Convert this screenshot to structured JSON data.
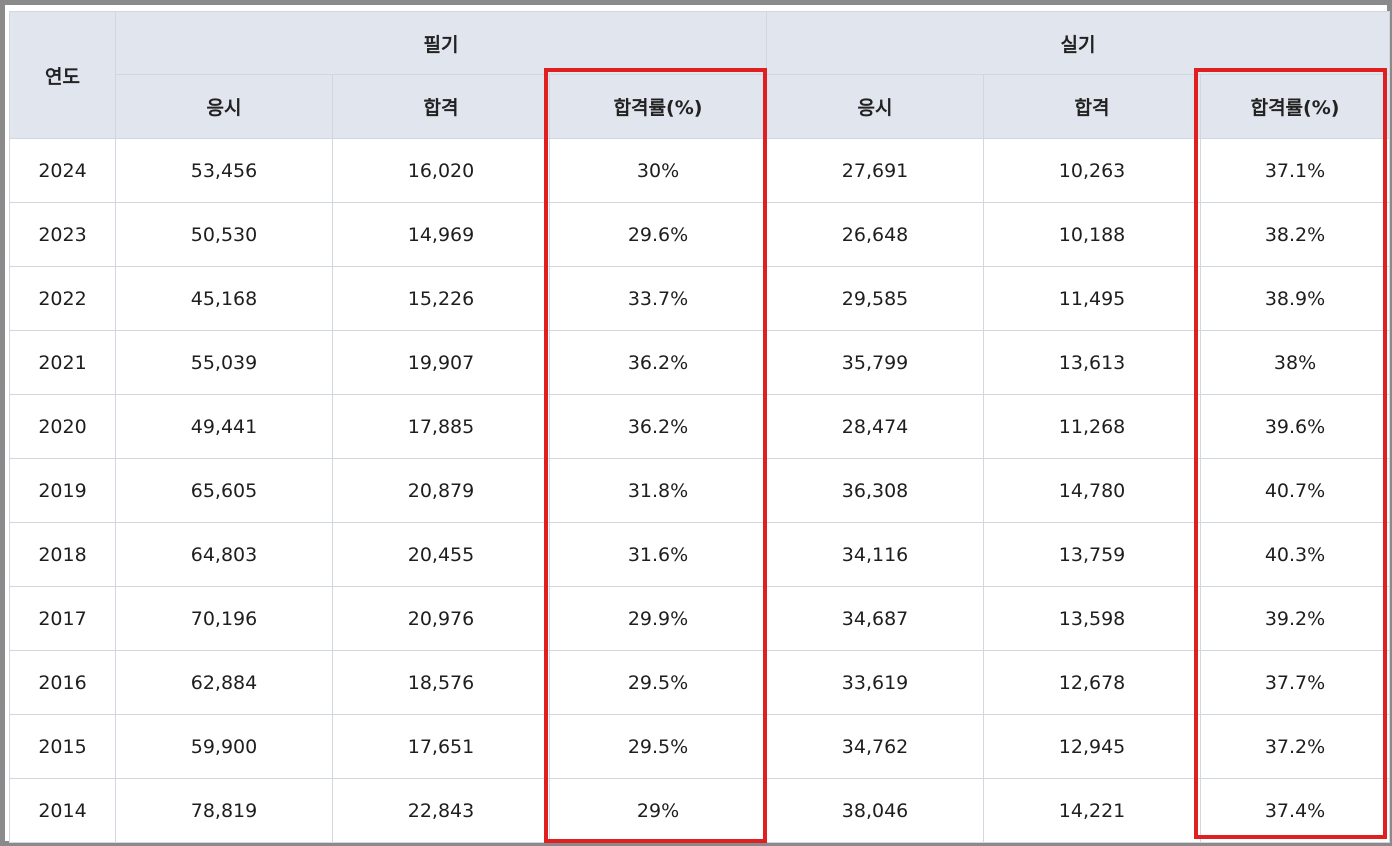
{
  "columns": {
    "year": "연도",
    "written_group": "필기",
    "practical_group": "실기",
    "applicants": "응시",
    "passed": "합격",
    "pass_rate": "합격률(%)"
  },
  "rows": [
    {
      "year": "2024",
      "w_app": "53,456",
      "w_pass": "16,020",
      "w_rate": "30%",
      "p_app": "27,691",
      "p_pass": "10,263",
      "p_rate": "37.1%"
    },
    {
      "year": "2023",
      "w_app": "50,530",
      "w_pass": "14,969",
      "w_rate": "29.6%",
      "p_app": "26,648",
      "p_pass": "10,188",
      "p_rate": "38.2%"
    },
    {
      "year": "2022",
      "w_app": "45,168",
      "w_pass": "15,226",
      "w_rate": "33.7%",
      "p_app": "29,585",
      "p_pass": "11,495",
      "p_rate": "38.9%"
    },
    {
      "year": "2021",
      "w_app": "55,039",
      "w_pass": "19,907",
      "w_rate": "36.2%",
      "p_app": "35,799",
      "p_pass": "13,613",
      "p_rate": "38%"
    },
    {
      "year": "2020",
      "w_app": "49,441",
      "w_pass": "17,885",
      "w_rate": "36.2%",
      "p_app": "28,474",
      "p_pass": "11,268",
      "p_rate": "39.6%"
    },
    {
      "year": "2019",
      "w_app": "65,605",
      "w_pass": "20,879",
      "w_rate": "31.8%",
      "p_app": "36,308",
      "p_pass": "14,780",
      "p_rate": "40.7%"
    },
    {
      "year": "2018",
      "w_app": "64,803",
      "w_pass": "20,455",
      "w_rate": "31.6%",
      "p_app": "34,116",
      "p_pass": "13,759",
      "p_rate": "40.3%"
    },
    {
      "year": "2017",
      "w_app": "70,196",
      "w_pass": "20,976",
      "w_rate": "29.9%",
      "p_app": "34,687",
      "p_pass": "13,598",
      "p_rate": "39.2%"
    },
    {
      "year": "2016",
      "w_app": "62,884",
      "w_pass": "18,576",
      "w_rate": "29.5%",
      "p_app": "33,619",
      "p_pass": "12,678",
      "p_rate": "37.7%"
    },
    {
      "year": "2015",
      "w_app": "59,900",
      "w_pass": "17,651",
      "w_rate": "29.5%",
      "p_app": "34,762",
      "p_pass": "12,945",
      "p_rate": "37.2%"
    },
    {
      "year": "2014",
      "w_app": "78,819",
      "w_pass": "22,843",
      "w_rate": "29%",
      "p_app": "38,046",
      "p_pass": "14,221",
      "p_rate": "37.4%"
    }
  ],
  "colors": {
    "header_bg": "#e1e5ee",
    "grid": "#d2d6de",
    "highlight": "#e02020",
    "frame": "#8a8a8a"
  }
}
